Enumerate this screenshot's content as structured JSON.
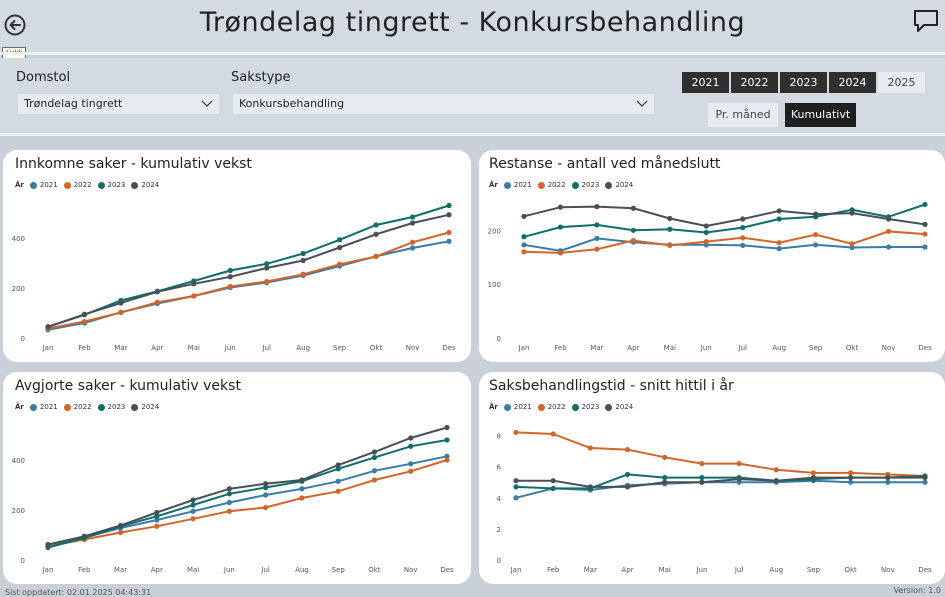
{
  "header": {
    "title": "Trøndelag tingrett - Konkursbehandling",
    "tooltip": "Lukk"
  },
  "filters": {
    "court_label": "Domstol",
    "court_value": "Trøndelag tingrett",
    "casetype_label": "Sakstype",
    "casetype_value": "Konkursbehandling",
    "years": [
      {
        "label": "2021",
        "active": true
      },
      {
        "label": "2022",
        "active": true
      },
      {
        "label": "2023",
        "active": true
      },
      {
        "label": "2024",
        "active": true
      },
      {
        "label": "2025",
        "active": false
      }
    ],
    "per_month_label": "Pr. måned",
    "cumulative_label": "Kumulativt"
  },
  "legend_title": "År",
  "series_colors": {
    "2021": "#3a7ca5",
    "2022": "#d2652a",
    "2023": "#0f6e6a",
    "2024": "#474f57"
  },
  "footer": {
    "updated": "Sist oppdatert: 02.01.2025 04:43:31",
    "version": "Version: 1.0"
  },
  "chart_data": [
    {
      "type": "line",
      "title": "Innkomne saker - kumulativ vekst",
      "categories": [
        "Jan",
        "Feb",
        "Mar",
        "Apr",
        "Mai",
        "Jun",
        "Jul",
        "Aug",
        "Sep",
        "Okt",
        "Nov",
        "Des"
      ],
      "yticks": [
        0,
        200,
        400
      ],
      "ylim": [
        0,
        560
      ],
      "series": [
        {
          "name": "2021",
          "values": [
            33,
            60,
            103,
            138,
            168,
            202,
            222,
            250,
            288,
            327,
            360,
            387
          ]
        },
        {
          "name": "2022",
          "values": [
            38,
            66,
            102,
            143,
            168,
            206,
            226,
            255,
            295,
            326,
            383,
            422
          ]
        },
        {
          "name": "2023",
          "values": [
            45,
            93,
            150,
            187,
            228,
            270,
            297,
            338,
            393,
            452,
            484,
            530
          ]
        },
        {
          "name": "2024",
          "values": [
            45,
            95,
            140,
            185,
            217,
            245,
            280,
            310,
            362,
            415,
            460,
            493
          ]
        }
      ]
    },
    {
      "type": "line",
      "title": "Restanse - antall ved månedslutt",
      "categories": [
        "Jan",
        "Feb",
        "Mar",
        "Apr",
        "Mai",
        "Jun",
        "Jul",
        "Aug",
        "Sep",
        "Okt",
        "Nov",
        "Des"
      ],
      "yticks": [
        0,
        100,
        200
      ],
      "ylim": [
        0,
        260
      ],
      "series": [
        {
          "name": "2021",
          "values": [
            173,
            162,
            185,
            178,
            173,
            173,
            172,
            166,
            173,
            168,
            169,
            169
          ]
        },
        {
          "name": "2022",
          "values": [
            160,
            158,
            165,
            181,
            172,
            179,
            186,
            177,
            192,
            175,
            198,
            193
          ]
        },
        {
          "name": "2023",
          "values": [
            188,
            206,
            210,
            200,
            202,
            196,
            205,
            221,
            225,
            238,
            225,
            248
          ]
        },
        {
          "name": "2024",
          "values": [
            226,
            243,
            244,
            241,
            222,
            208,
            221,
            236,
            230,
            232,
            221,
            211
          ]
        }
      ]
    },
    {
      "type": "line",
      "title": "Avgjorte saker - kumulativ vekst",
      "categories": [
        "Jan",
        "Feb",
        "Mar",
        "Apr",
        "Mai",
        "Jun",
        "Jul",
        "Aug",
        "Sep",
        "Okt",
        "Nov",
        "Des"
      ],
      "yticks": [
        0,
        200,
        400
      ],
      "ylim": [
        0,
        560
      ],
      "series": [
        {
          "name": "2021",
          "values": [
            58,
            90,
            128,
            160,
            195,
            230,
            260,
            285,
            315,
            357,
            385,
            415
          ]
        },
        {
          "name": "2022",
          "values": [
            55,
            82,
            110,
            135,
            165,
            195,
            210,
            248,
            275,
            320,
            355,
            400
          ]
        },
        {
          "name": "2023",
          "values": [
            50,
            88,
            135,
            175,
            220,
            265,
            290,
            315,
            365,
            410,
            455,
            480
          ]
        },
        {
          "name": "2024",
          "values": [
            62,
            95,
            138,
            190,
            240,
            285,
            305,
            320,
            380,
            432,
            488,
            530
          ]
        }
      ]
    },
    {
      "type": "line",
      "title": "Saksbehandlingstid - snitt hittil i år",
      "categories": [
        "Jan",
        "Feb",
        "Mar",
        "Apr",
        "Mai",
        "Jun",
        "Jul",
        "Aug",
        "Sep",
        "Okt",
        "Nov",
        "Des"
      ],
      "yticks": [
        0,
        2,
        4,
        6,
        8
      ],
      "ylim": [
        0,
        9
      ],
      "series": [
        {
          "name": "2021",
          "values": [
            4.0,
            4.6,
            4.5,
            4.8,
            4.9,
            5.0,
            5.0,
            5.0,
            5.1,
            5.0,
            5.0,
            5.0
          ]
        },
        {
          "name": "2022",
          "values": [
            8.2,
            8.1,
            7.2,
            7.1,
            6.6,
            6.2,
            6.2,
            5.8,
            5.6,
            5.6,
            5.5,
            5.4
          ]
        },
        {
          "name": "2023",
          "values": [
            4.7,
            4.6,
            4.6,
            5.5,
            5.3,
            5.3,
            5.3,
            5.1,
            5.2,
            5.3,
            5.3,
            5.4
          ]
        },
        {
          "name": "2024",
          "values": [
            5.1,
            5.1,
            4.7,
            4.7,
            5.0,
            5.0,
            5.2,
            5.1,
            5.3,
            5.3,
            5.3,
            5.3
          ]
        }
      ]
    }
  ]
}
